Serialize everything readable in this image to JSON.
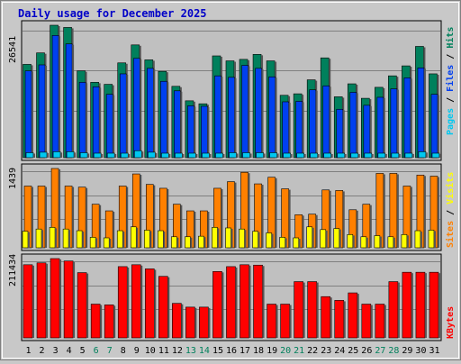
{
  "colors": {
    "title": "#0000c8",
    "hits": "#00805c",
    "files": "#0040f0",
    "pages": "#00c8f0",
    "visits": "#ffff00",
    "sites": "#ff8000",
    "kbytes": "#ff0000",
    "weekend_day": "#00805c",
    "weekday": "#000000",
    "panel_bg": "#c0c0c0",
    "grid": "#808080"
  },
  "chart_data": {
    "type": "bar",
    "title": "Daily usage for December 2025",
    "categories": [
      "1",
      "2",
      "3",
      "4",
      "5",
      "6",
      "7",
      "8",
      "9",
      "10",
      "11",
      "12",
      "13",
      "14",
      "15",
      "16",
      "17",
      "18",
      "19",
      "20",
      "21",
      "22",
      "23",
      "24",
      "25",
      "26",
      "27",
      "28",
      "29",
      "30",
      "31"
    ],
    "weekend_days": [
      "6",
      "7",
      "13",
      "14",
      "20",
      "21",
      "27",
      "28"
    ],
    "panels": [
      {
        "name": "hits-files-pages",
        "max_label": "26541",
        "ymax": 26541,
        "right_label": [
          "Pages",
          " / ",
          "Files",
          " / ",
          "Hits"
        ],
        "series": [
          {
            "name": "Hits",
            "values": [
              18700,
              21000,
              26541,
              26100,
              17400,
              15100,
              14700,
              19000,
              22600,
              19600,
              17300,
              14300,
              11400,
              10800,
              20400,
              19400,
              19700,
              20700,
              19400,
              12500,
              12800,
              15600,
              20000,
              12200,
              14800,
              11900,
              14100,
              16400,
              18400,
              22300,
              16800
            ]
          },
          {
            "name": "Files",
            "values": [
              17400,
              18600,
              24500,
              22800,
              15100,
              14200,
              12700,
              16800,
              19900,
              17900,
              15300,
              13400,
              10400,
              10300,
              16400,
              16100,
              18500,
              17900,
              16200,
              11200,
              11300,
              13600,
              14400,
              9700,
              13100,
              10500,
              12100,
              13800,
              16000,
              18000,
              12700
            ]
          },
          {
            "name": "Pages",
            "values": [
              1000,
              1100,
              1200,
              1200,
              1000,
              800,
              700,
              900,
              1400,
              1100,
              900,
              700,
              600,
              600,
              900,
              1000,
              1000,
              1000,
              1000,
              600,
              600,
              800,
              900,
              600,
              700,
              600,
              700,
              800,
              900,
              1200,
              900
            ]
          }
        ]
      },
      {
        "name": "visits-sites",
        "max_label": "1439",
        "ymax": 1439,
        "right_label": [
          "Sites",
          " / ",
          "Visits"
        ],
        "series": [
          {
            "name": "Sites",
            "values": [
              1120,
              1120,
              1439,
              1120,
              1100,
              790,
              670,
              1120,
              1340,
              1150,
              1080,
              790,
              670,
              670,
              1080,
              1200,
              1370,
              1160,
              1280,
              1070,
              600,
              610,
              1050,
              1040,
              690,
              790,
              1350,
              1350,
              1120,
              1320,
              1300
            ]
          },
          {
            "name": "Visits",
            "values": [
              300,
              340,
              370,
              340,
              310,
              190,
              180,
              310,
              380,
              320,
              310,
              200,
              200,
              210,
              370,
              360,
              340,
              300,
              270,
              190,
              180,
              380,
              330,
              350,
              240,
              200,
              220,
              200,
              240,
              310,
              320
            ]
          }
        ]
      },
      {
        "name": "kbytes",
        "max_label": "211434",
        "ymax": 211434,
        "right_label": [
          "KBytes"
        ],
        "series": [
          {
            "name": "KBytes",
            "values": [
              195000,
              200000,
              211434,
              205000,
              174000,
              90000,
              88000,
              190000,
              195000,
              184000,
              164000,
              92000,
              82000,
              82000,
              177000,
              190000,
              195000,
              194000,
              90000,
              90000,
              150000,
              150000,
              110000,
              100000,
              120000,
              90000,
              90000,
              150000,
              175000,
              175000,
              175000
            ]
          }
        ]
      }
    ]
  }
}
